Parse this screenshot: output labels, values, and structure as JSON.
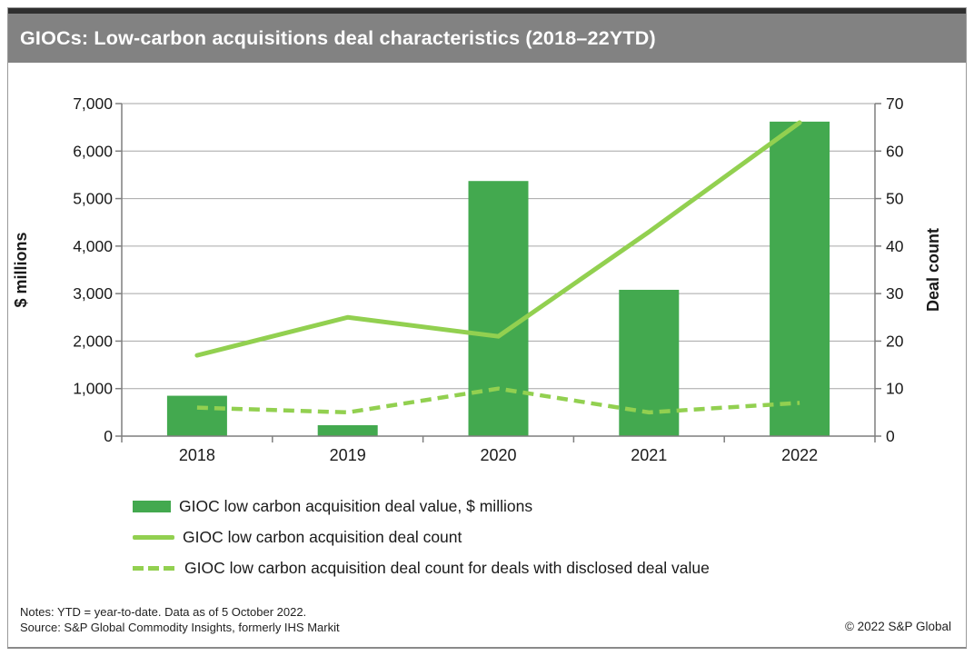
{
  "title_bar": {
    "title": "GIOCs: Low-carbon acquisitions deal characteristics (2018–22YTD)"
  },
  "chart_data": {
    "type": "combo",
    "categories": [
      "2018",
      "2019",
      "2020",
      "2021",
      "2022"
    ],
    "series": [
      {
        "name": "GIOC low carbon acquisition deal value, $ millions",
        "type": "bar",
        "axis": "left",
        "color": "#43A94F",
        "values": [
          850,
          230,
          5370,
          3080,
          6620
        ]
      },
      {
        "name": "GIOC low carbon acquisition deal count",
        "type": "line",
        "axis": "right",
        "color": "#92D050",
        "values": [
          17,
          25,
          21,
          43,
          66
        ]
      },
      {
        "name": "GIOC low carbon acquisition deal count for deals with disclosed deal value",
        "type": "dashed-line",
        "axis": "right",
        "color": "#92D050",
        "values": [
          6,
          5,
          10,
          5,
          7
        ]
      }
    ],
    "left_axis": {
      "label": "$ millions",
      "min": 0,
      "max": 7000,
      "tick_labels": [
        "0",
        "1,000",
        "2,000",
        "3,000",
        "4,000",
        "5,000",
        "6,000",
        "7,000"
      ]
    },
    "right_axis": {
      "label": "Deal count",
      "min": 0,
      "max": 70,
      "tick_labels": [
        "0",
        "10",
        "20",
        "30",
        "40",
        "50",
        "60",
        "70"
      ]
    },
    "grid": true,
    "legend_position": "bottom-left"
  },
  "footer": {
    "notes": "Notes: YTD = year-to-date. Data as of 5 October 2022.",
    "source": "Source: S&P Global Commodity Insights, formerly IHS Markit",
    "copyright": "© 2022 S&P Global"
  },
  "colors": {
    "bar": "#43A94F",
    "line": "#92D050",
    "title_bar_bg": "#828282",
    "title_text": "#FFFFFF",
    "top_strip": "#2F2F2F",
    "grid": "#A6A6A6",
    "axis": "#7F7F7F",
    "text": "#1A1A1A"
  }
}
